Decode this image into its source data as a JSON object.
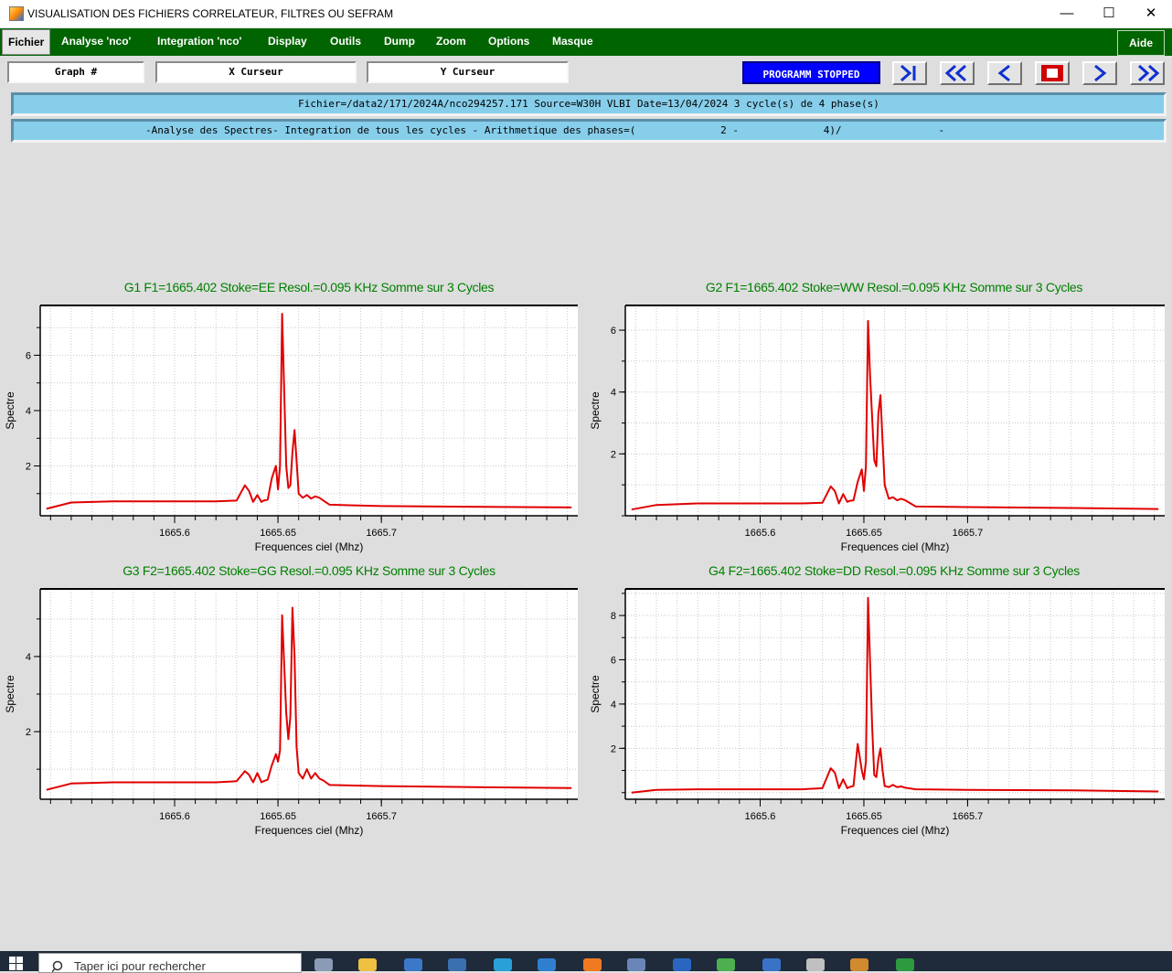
{
  "window": {
    "title": "VISUALISATION DES FICHIERS CORRELATEUR, FILTRES OU SEFRAM",
    "minimize": "—",
    "maximize": "☐",
    "close": "✕"
  },
  "menu": {
    "items": [
      "Fichier",
      "Analyse 'nco'",
      "Integration 'nco'",
      "Display",
      "Outils",
      "Dump",
      "Zoom",
      "Options",
      "Masque"
    ],
    "help": "Aide",
    "active": "Fichier"
  },
  "toolbar": {
    "graph_field": "Graph #",
    "x_cursor": "X Curseur",
    "y_cursor": "Y Curseur",
    "status": "PROGRAMM STOPPED",
    "status_color": "#0000ff",
    "nav_buttons": [
      "skip-to-end-icon",
      "fast-rewind-icon",
      "step-back-icon",
      "stop-icon",
      "step-forward-icon",
      "fast-forward-icon"
    ]
  },
  "info": {
    "line1": "Fichier=/data2/171/2024A/nco294257.171 Source=W30H VLBI Date=13/04/2024 3 cycle(s) de 4 phase(s)",
    "line2": "-Analyse des Spectres- Integration de tous les cycles - Arithmetique des phases=(              2 -              4)/                -"
  },
  "taskbar": {
    "search_placeholder": "Taper ici pour rechercher"
  },
  "chart_data": [
    {
      "type": "line",
      "title": "G1 F1=1665.402 Stoke=EE Resol.=0.095 KHz Somme sur 3 Cycles",
      "xlabel": "Frequences ciel (Mhz)",
      "ylabel": "Spectre",
      "xlim": [
        1665.535,
        1665.795
      ],
      "ylim": [
        0.2,
        7.8
      ],
      "xticks": [
        "1665.6",
        "1665.65",
        "1665.7"
      ],
      "xtick_values": [
        1665.6,
        1665.65,
        1665.7
      ],
      "yticks": [
        "2",
        "4",
        "6"
      ],
      "ytick_values": [
        2,
        4,
        6
      ],
      "line_color": "#e00000",
      "grid": true,
      "series": [
        {
          "x": [
            1665.538,
            1665.55,
            1665.57,
            1665.6,
            1665.62,
            1665.63,
            1665.634,
            1665.636,
            1665.638,
            1665.64,
            1665.642,
            1665.643,
            1665.645,
            1665.647,
            1665.649,
            1665.65,
            1665.651,
            1665.652,
            1665.654,
            1665.655,
            1665.656,
            1665.657,
            1665.658,
            1665.659,
            1665.66,
            1665.662,
            1665.664,
            1665.666,
            1665.668,
            1665.67,
            1665.672,
            1665.675,
            1665.7,
            1665.75,
            1665.792
          ],
          "y": [
            0.45,
            0.68,
            0.72,
            0.72,
            0.72,
            0.75,
            1.3,
            1.1,
            0.7,
            0.95,
            0.7,
            0.75,
            0.78,
            1.55,
            2.0,
            1.15,
            2.0,
            7.5,
            2.0,
            1.2,
            1.3,
            2.5,
            3.3,
            2.2,
            1.0,
            0.85,
            0.95,
            0.82,
            0.9,
            0.85,
            0.75,
            0.6,
            0.55,
            0.52,
            0.5
          ]
        }
      ]
    },
    {
      "type": "line",
      "title": "G2 F1=1665.402 Stoke=WW Resol.=0.095 KHz Somme sur 3 Cycles",
      "xlabel": "Frequences ciel (Mhz)",
      "ylabel": "Spectre",
      "xlim": [
        1665.535,
        1665.795
      ],
      "ylim": [
        0.0,
        6.8
      ],
      "xticks": [
        "1665.6",
        "1665.65",
        "1665.7"
      ],
      "xtick_values": [
        1665.6,
        1665.65,
        1665.7
      ],
      "yticks": [
        "2",
        "4",
        "6"
      ],
      "ytick_values": [
        2,
        4,
        6
      ],
      "line_color": "#e00000",
      "grid": true,
      "series": [
        {
          "x": [
            1665.538,
            1665.55,
            1665.57,
            1665.6,
            1665.62,
            1665.63,
            1665.634,
            1665.636,
            1665.638,
            1665.64,
            1665.642,
            1665.643,
            1665.645,
            1665.647,
            1665.649,
            1665.65,
            1665.651,
            1665.652,
            1665.653,
            1665.655,
            1665.656,
            1665.657,
            1665.658,
            1665.659,
            1665.66,
            1665.662,
            1665.664,
            1665.666,
            1665.668,
            1665.67,
            1665.675,
            1665.7,
            1665.75,
            1665.792
          ],
          "y": [
            0.2,
            0.35,
            0.4,
            0.4,
            0.4,
            0.42,
            0.95,
            0.8,
            0.4,
            0.7,
            0.45,
            0.48,
            0.5,
            1.1,
            1.5,
            0.8,
            1.6,
            6.3,
            4.5,
            1.8,
            1.6,
            3.3,
            3.9,
            2.4,
            1.0,
            0.55,
            0.6,
            0.5,
            0.55,
            0.5,
            0.3,
            0.28,
            0.25,
            0.22
          ]
        }
      ]
    },
    {
      "type": "line",
      "title": "G3 F2=1665.402 Stoke=GG Resol.=0.095 KHz Somme sur 3 Cycles",
      "xlabel": "Frequences ciel (Mhz)",
      "ylabel": "Spectre",
      "xlim": [
        1665.535,
        1665.795
      ],
      "ylim": [
        0.2,
        5.8
      ],
      "xticks": [
        "1665.6",
        "1665.65",
        "1665.7"
      ],
      "xtick_values": [
        1665.6,
        1665.65,
        1665.7
      ],
      "yticks": [
        "2",
        "4"
      ],
      "ytick_values": [
        2,
        4
      ],
      "line_color": "#e00000",
      "grid": true,
      "series": [
        {
          "x": [
            1665.538,
            1665.55,
            1665.57,
            1665.6,
            1665.62,
            1665.63,
            1665.634,
            1665.636,
            1665.638,
            1665.64,
            1665.642,
            1665.643,
            1665.645,
            1665.647,
            1665.649,
            1665.65,
            1665.651,
            1665.652,
            1665.654,
            1665.655,
            1665.656,
            1665.657,
            1665.658,
            1665.659,
            1665.66,
            1665.662,
            1665.664,
            1665.666,
            1665.668,
            1665.67,
            1665.672,
            1665.675,
            1665.7,
            1665.75,
            1665.792
          ],
          "y": [
            0.45,
            0.62,
            0.65,
            0.65,
            0.65,
            0.68,
            0.95,
            0.85,
            0.65,
            0.9,
            0.65,
            0.68,
            0.72,
            1.1,
            1.4,
            1.2,
            1.5,
            5.1,
            2.5,
            1.8,
            2.4,
            5.3,
            4.0,
            1.6,
            0.9,
            0.75,
            1.0,
            0.75,
            0.9,
            0.75,
            0.7,
            0.58,
            0.55,
            0.52,
            0.5
          ]
        }
      ]
    },
    {
      "type": "line",
      "title": "G4 F2=1665.402 Stoke=DD Resol.=0.095 KHz Somme sur 3 Cycles",
      "xlabel": "Frequences ciel (Mhz)",
      "ylabel": "Spectre",
      "xlim": [
        1665.535,
        1665.795
      ],
      "ylim": [
        -0.3,
        9.2
      ],
      "xticks": [
        "1665.6",
        "1665.65",
        "1665.7"
      ],
      "xtick_values": [
        1665.6,
        1665.65,
        1665.7
      ],
      "yticks": [
        "2",
        "4",
        "6",
        "8"
      ],
      "ytick_values": [
        2,
        4,
        6,
        8
      ],
      "line_color": "#e00000",
      "grid": true,
      "series": [
        {
          "x": [
            1665.538,
            1665.55,
            1665.57,
            1665.6,
            1665.62,
            1665.63,
            1665.634,
            1665.636,
            1665.638,
            1665.64,
            1665.642,
            1665.643,
            1665.645,
            1665.647,
            1665.649,
            1665.65,
            1665.651,
            1665.652,
            1665.654,
            1665.655,
            1665.656,
            1665.657,
            1665.658,
            1665.659,
            1665.66,
            1665.662,
            1665.664,
            1665.666,
            1665.668,
            1665.67,
            1665.675,
            1665.7,
            1665.75,
            1665.792
          ],
          "y": [
            0.0,
            0.12,
            0.15,
            0.15,
            0.15,
            0.2,
            1.1,
            0.9,
            0.2,
            0.6,
            0.2,
            0.25,
            0.3,
            2.2,
            1.0,
            0.6,
            1.4,
            8.8,
            3.0,
            0.8,
            0.7,
            1.5,
            2.0,
            1.0,
            0.3,
            0.25,
            0.35,
            0.25,
            0.28,
            0.22,
            0.15,
            0.12,
            0.1,
            0.05
          ]
        }
      ]
    }
  ]
}
